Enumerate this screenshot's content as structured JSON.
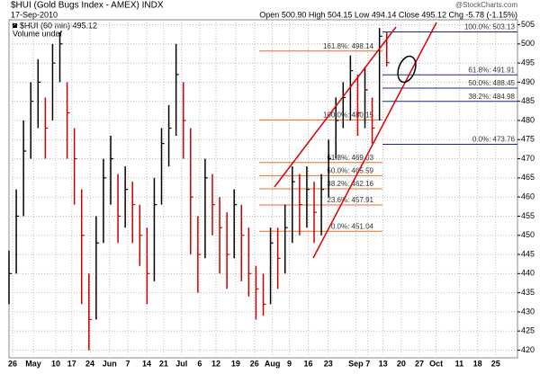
{
  "chart_data": {
    "type": "hlc",
    "title": "$HUI (Gold Bugs Index - AMEX) INDX",
    "date": "17-Sep-2010",
    "quote": "Open 500.90  High 504.15  Low 494.14  Close 495.12  Chg -5.78 (-1.15%)",
    "credit": "@StockCharts.com",
    "series_name": "$HUI (60 min) 495.12",
    "volume_label": "Volume undef",
    "x": [
      0,
      2,
      4,
      6,
      8,
      10,
      12,
      14,
      16,
      18,
      20,
      22,
      24,
      26,
      28,
      30,
      32,
      34,
      36,
      38,
      40,
      42,
      44,
      46,
      48,
      50,
      52,
      54,
      56,
      58,
      60,
      62,
      64,
      66,
      68,
      70,
      72,
      74,
      76,
      78,
      80,
      82,
      84,
      86,
      88,
      90,
      92,
      94,
      96,
      98,
      100,
      102,
      104
    ],
    "close": [
      440,
      455,
      472,
      485,
      490,
      478,
      495,
      500,
      482,
      470,
      450,
      428,
      448,
      465,
      470,
      455,
      462,
      458,
      450,
      440,
      458,
      474,
      478,
      492,
      480,
      460,
      445,
      465,
      458,
      452,
      445,
      458,
      450,
      440,
      436,
      432,
      448,
      444,
      452,
      464,
      458,
      462,
      456,
      462,
      470,
      480,
      486,
      493,
      482,
      488,
      478,
      502,
      495.12
    ],
    "high": [
      446,
      462,
      480,
      490,
      496,
      486,
      500,
      503,
      490,
      478,
      462,
      440,
      455,
      470,
      476,
      466,
      468,
      464,
      458,
      452,
      465,
      478,
      484,
      500,
      490,
      478,
      455,
      470,
      466,
      460,
      456,
      462,
      458,
      452,
      442,
      440,
      452,
      452,
      458,
      468,
      466,
      468,
      464,
      466,
      475,
      486,
      490,
      497,
      492,
      494,
      486,
      504.15,
      503
    ],
    "low": [
      432,
      440,
      455,
      470,
      478,
      470,
      480,
      490,
      470,
      458,
      432,
      420,
      428,
      448,
      458,
      448,
      452,
      448,
      442,
      432,
      438,
      458,
      468,
      476,
      470,
      445,
      435,
      444,
      450,
      440,
      436,
      444,
      438,
      434,
      428,
      429,
      432,
      436,
      440,
      448,
      450,
      452,
      448,
      450,
      460,
      470,
      478,
      480,
      476,
      478,
      474,
      480,
      494.14
    ],
    "xlim": [
      0,
      140
    ],
    "xticks": [
      {
        "value": 1,
        "label": "26"
      },
      {
        "value": 6.7,
        "label": "May"
      },
      {
        "value": 12.9,
        "label": "10"
      },
      {
        "value": 17.3,
        "label": "17"
      },
      {
        "value": 22.3,
        "label": "24"
      },
      {
        "value": 27.7,
        "label": "Jun"
      },
      {
        "value": 32.7,
        "label": "7"
      },
      {
        "value": 37.9,
        "label": "14"
      },
      {
        "value": 42.6,
        "label": "21"
      },
      {
        "value": 47.5,
        "label": "Jul"
      },
      {
        "value": 52.5,
        "label": "6"
      },
      {
        "value": 57,
        "label": "12"
      },
      {
        "value": 62.4,
        "label": "19"
      },
      {
        "value": 67.6,
        "label": "26"
      },
      {
        "value": 72.5,
        "label": "Aug"
      },
      {
        "value": 77.2,
        "label": "9"
      },
      {
        "value": 82.4,
        "label": "16"
      },
      {
        "value": 87.9,
        "label": "23"
      },
      {
        "value": 95.5,
        "label": "Sep"
      },
      {
        "value": 98.8,
        "label": "7"
      },
      {
        "value": 103,
        "label": "13"
      },
      {
        "value": 108,
        "label": "20"
      },
      {
        "value": 113,
        "label": "27"
      },
      {
        "value": 117.6,
        "label": "Oct"
      },
      {
        "value": 124,
        "label": "11"
      },
      {
        "value": 129,
        "label": "18"
      },
      {
        "value": 134,
        "label": "25"
      }
    ],
    "ylim": [
      418,
      506.3
    ],
    "yticks": [
      420,
      425,
      430,
      435,
      440,
      445,
      450,
      455,
      460,
      465,
      470,
      475,
      480,
      485,
      490,
      495,
      500,
      505
    ],
    "grid": true,
    "fib_orange": [
      {
        "value": 498.14,
        "label": "161.8%: 498.14"
      },
      {
        "value": 480.15,
        "label": "100.0%: 480.15"
      },
      {
        "value": 469.03,
        "label": "61.8%: 469.03"
      },
      {
        "value": 465.59,
        "label": "50.0%: 465.59"
      },
      {
        "value": 462.16,
        "label": "38.2%: 462.16"
      },
      {
        "value": 457.91,
        "label": "23.6%: 457.91"
      },
      {
        "value": 451.04,
        "label": "0.0%: 451.04"
      }
    ],
    "fib_blue": [
      {
        "value": 503.13,
        "label": "100.0%: 503.13"
      },
      {
        "value": 491.91,
        "label": "61.8%: 491.91"
      },
      {
        "value": 488.45,
        "label": "50.0%: 488.45"
      },
      {
        "value": 484.98,
        "label": "38.2%: 484.98"
      },
      {
        "value": 473.76,
        "label": "0.0%: 473.76"
      }
    ],
    "up_color": "#000000",
    "down_color": "#cc0000",
    "fib_orange_color": "#e07030",
    "fib_blue_color": "#1a2a80"
  }
}
